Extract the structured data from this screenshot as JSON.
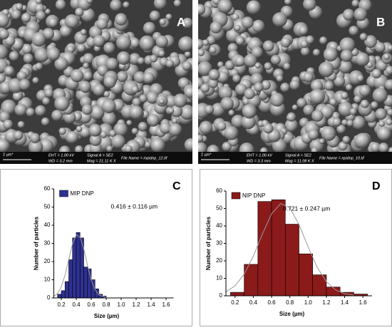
{
  "images": [
    {
      "letter": "A",
      "scale": "2 µm*",
      "eht": "EHT = 1.00 kV",
      "wd": "WD = 3.2 mm",
      "signal": "Signal A = SE2",
      "mag": "Mag = 21.11 K X",
      "file": "File Name = mpidnp_12.tif"
    },
    {
      "letter": "B",
      "scale": "2 µm*",
      "eht": "EHT = 1.00 kV",
      "wd": "WD = 3.3 mm",
      "signal": "Signal A = SE2",
      "mag": "Mag = 11.08 K X",
      "file": "File Name = npidnp_10.tif"
    }
  ],
  "chart_data": [
    {
      "type": "histogram",
      "letter": "C",
      "annotation": "0.416 ± 0.116 µm",
      "x_label": "Size (µm)",
      "y_label": "Number of particles",
      "series": [
        {
          "name": "MIP DNP",
          "color": "#2e3192",
          "bins": [
            0.15,
            0.2,
            0.25,
            0.3,
            0.35,
            0.4,
            0.45,
            0.5,
            0.55,
            0.6,
            0.65,
            0.7,
            0.75,
            0.8
          ],
          "values": [
            2,
            4,
            9,
            21,
            33,
            36,
            33,
            17,
            16,
            10,
            5,
            2,
            1
          ]
        }
      ],
      "fit": {
        "color": "#999999",
        "x": [
          0.1,
          0.15,
          0.2,
          0.25,
          0.3,
          0.35,
          0.4,
          0.45,
          0.5,
          0.55,
          0.6,
          0.65,
          0.7,
          0.8
        ],
        "values": [
          0.9,
          2.5,
          6.2,
          12.6,
          21.2,
          29.8,
          34.7,
          33.5,
          27,
          17.9,
          9.9,
          4.6,
          1.7,
          0.2
        ]
      },
      "legend": "upper left",
      "xlim": [
        0.1,
        1.7
      ],
      "ylim": [
        0,
        60
      ],
      "xticks": [
        0.2,
        0.4,
        0.6,
        0.8,
        {
          "value": 1.0,
          "label": "1.0"
        },
        1.2,
        1.4,
        1.6
      ],
      "yticks": [
        0,
        10,
        20,
        30,
        40,
        50,
        60
      ]
    },
    {
      "type": "histogram",
      "letter": "D",
      "annotation": "0.721 ± 0.247 µm",
      "x_label": "Size (µm)",
      "y_label": "Number of particles",
      "series": [
        {
          "name": "NIP DNP",
          "color": "#8b1a1a",
          "bins": [
            0.15,
            0.3,
            0.45,
            0.6,
            0.75,
            0.9,
            1.05,
            1.2,
            1.35,
            1.5,
            1.65
          ],
          "values": [
            2,
            18,
            54,
            55,
            41,
            24,
            12,
            5,
            2,
            1
          ]
        }
      ],
      "fit": {
        "color": "#999999",
        "x": [
          0.1,
          0.2,
          0.3,
          0.4,
          0.5,
          0.6,
          0.7,
          0.8,
          0.9,
          1.0,
          1.1,
          1.2,
          1.3,
          1.4,
          1.5
        ],
        "values": [
          2.2,
          5.7,
          12.4,
          22.7,
          35.5,
          47,
          52.8,
          50.3,
          40.8,
          28,
          16.3,
          8.1,
          3.4,
          1.2,
          0.4
        ]
      },
      "legend": "upper left",
      "xlim": [
        0.1,
        1.7
      ],
      "ylim": [
        0,
        60
      ],
      "xticks": [
        0.2,
        0.4,
        0.6,
        0.8,
        {
          "value": 1.0,
          "label": "1.0"
        },
        1.2,
        1.4,
        1.6
      ],
      "yticks": [
        0,
        10,
        20,
        30,
        40,
        50,
        60
      ]
    }
  ]
}
